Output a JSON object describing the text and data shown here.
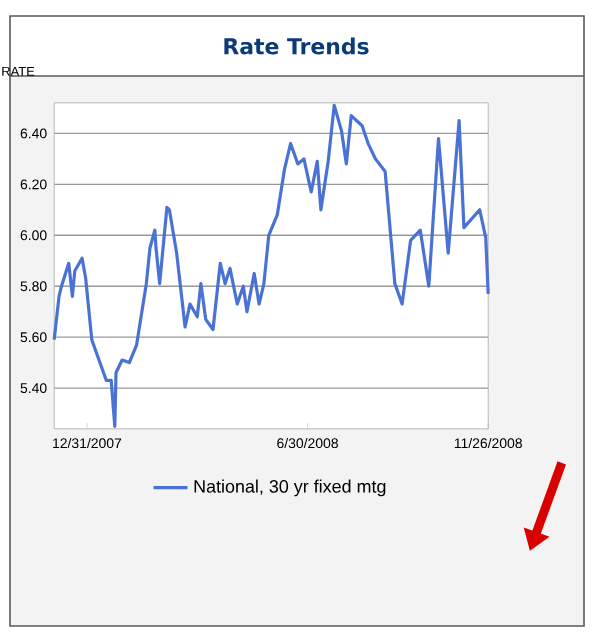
{
  "chart_data": {
    "type": "line",
    "title": "Rate Trends",
    "ylabel": "RATE",
    "x": [
      "2007-12-04",
      "2007-12-08",
      "2007-12-10",
      "2007-12-16",
      "2007-12-19",
      "2007-12-21",
      "2007-12-27",
      "2007-12-30",
      "2008-01-04",
      "2008-01-10",
      "2008-01-16",
      "2008-01-20",
      "2008-01-23",
      "2008-01-24",
      "2008-01-29",
      "2008-02-04",
      "2008-02-10",
      "2008-02-15",
      "2008-02-18",
      "2008-02-21",
      "2008-02-25",
      "2008-02-26",
      "2008-02-29",
      "2008-03-06",
      "2008-03-08",
      "2008-03-14",
      "2008-03-21",
      "2008-03-25",
      "2008-03-31",
      "2008-04-03",
      "2008-04-07",
      "2008-04-13",
      "2008-04-19",
      "2008-04-23",
      "2008-04-27",
      "2008-05-03",
      "2008-05-08",
      "2008-05-11",
      "2008-05-17",
      "2008-05-21",
      "2008-05-25",
      "2008-05-29",
      "2008-06-05",
      "2008-06-11",
      "2008-06-16",
      "2008-06-22",
      "2008-06-27",
      "2008-07-03",
      "2008-07-08",
      "2008-07-11",
      "2008-07-17",
      "2008-07-22",
      "2008-07-28",
      "2008-08-01",
      "2008-08-05",
      "2008-08-14",
      "2008-08-19",
      "2008-08-25",
      "2008-09-02",
      "2008-09-10",
      "2008-09-16",
      "2008-09-23",
      "2008-10-01",
      "2008-10-08",
      "2008-10-16",
      "2008-10-24",
      "2008-11-02",
      "2008-11-06",
      "2008-11-19",
      "2008-11-24",
      "2008-11-26"
    ],
    "series": [
      {
        "name": "National, 30 yr fixed mtg",
        "color": "#4a72d4",
        "values": [
          5.59,
          5.76,
          5.8,
          5.89,
          5.76,
          5.86,
          5.91,
          5.83,
          5.59,
          5.51,
          5.43,
          5.43,
          5.25,
          5.46,
          5.51,
          5.5,
          5.57,
          5.72,
          5.81,
          5.95,
          6.02,
          5.95,
          5.81,
          6.11,
          6.1,
          5.93,
          5.64,
          5.73,
          5.68,
          5.81,
          5.67,
          5.63,
          5.89,
          5.81,
          5.87,
          5.73,
          5.8,
          5.7,
          5.85,
          5.73,
          5.81,
          6.0,
          6.08,
          6.26,
          6.36,
          6.28,
          6.3,
          6.17,
          6.29,
          6.1,
          6.29,
          6.51,
          6.41,
          6.28,
          6.47,
          6.43,
          6.36,
          6.3,
          6.25,
          5.81,
          5.73,
          5.98,
          6.02,
          5.8,
          6.38,
          5.93,
          6.45,
          6.03,
          6.1,
          5.99,
          5.77
        ]
      }
    ],
    "xlim": [
      "2007-12-04",
      "2008-11-26"
    ],
    "xticks": [
      {
        "value": "2007-12-31",
        "label": "12/31/2007"
      },
      {
        "value": "2008-06-30",
        "label": "6/30/2008"
      },
      {
        "value": "2008-11-26",
        "label": "11/26/2008"
      }
    ],
    "ylim": [
      5.24,
      6.52
    ],
    "yticks": [
      {
        "value": 5.4,
        "label": "5.40"
      },
      {
        "value": 5.6,
        "label": "5.60"
      },
      {
        "value": 5.8,
        "label": "5.80"
      },
      {
        "value": 6.0,
        "label": "6.00"
      },
      {
        "value": 6.2,
        "label": "6.20"
      },
      {
        "value": 6.4,
        "label": "6.40"
      }
    ],
    "grid": "y",
    "legend": "bottom"
  }
}
